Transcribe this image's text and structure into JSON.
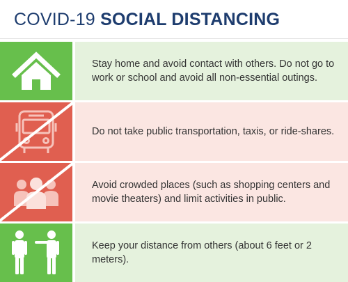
{
  "header": {
    "title_light": "COVID-19",
    "title_bold": "SOCIAL DISTANCING"
  },
  "colors": {
    "navy": "#1d3c6e",
    "green": "#67bf4c",
    "green_light": "#e5f2dd",
    "red": "#e05f50",
    "red_light": "#fbe6e2"
  },
  "rows": [
    {
      "icon": "house-icon",
      "text": "Stay home and avoid contact with others. Do not go to work or school and avoid all non-essential outings."
    },
    {
      "icon": "bus-crossed-icon",
      "text": "Do not take public transportation, taxis, or ride-shares."
    },
    {
      "icon": "crowd-crossed-icon",
      "text": "Avoid crowded places (such as shopping centers and movie theaters) and limit activities in public."
    },
    {
      "icon": "people-distance-icon",
      "text": "Keep your distance from others (about 6 feet or 2 meters)."
    }
  ]
}
